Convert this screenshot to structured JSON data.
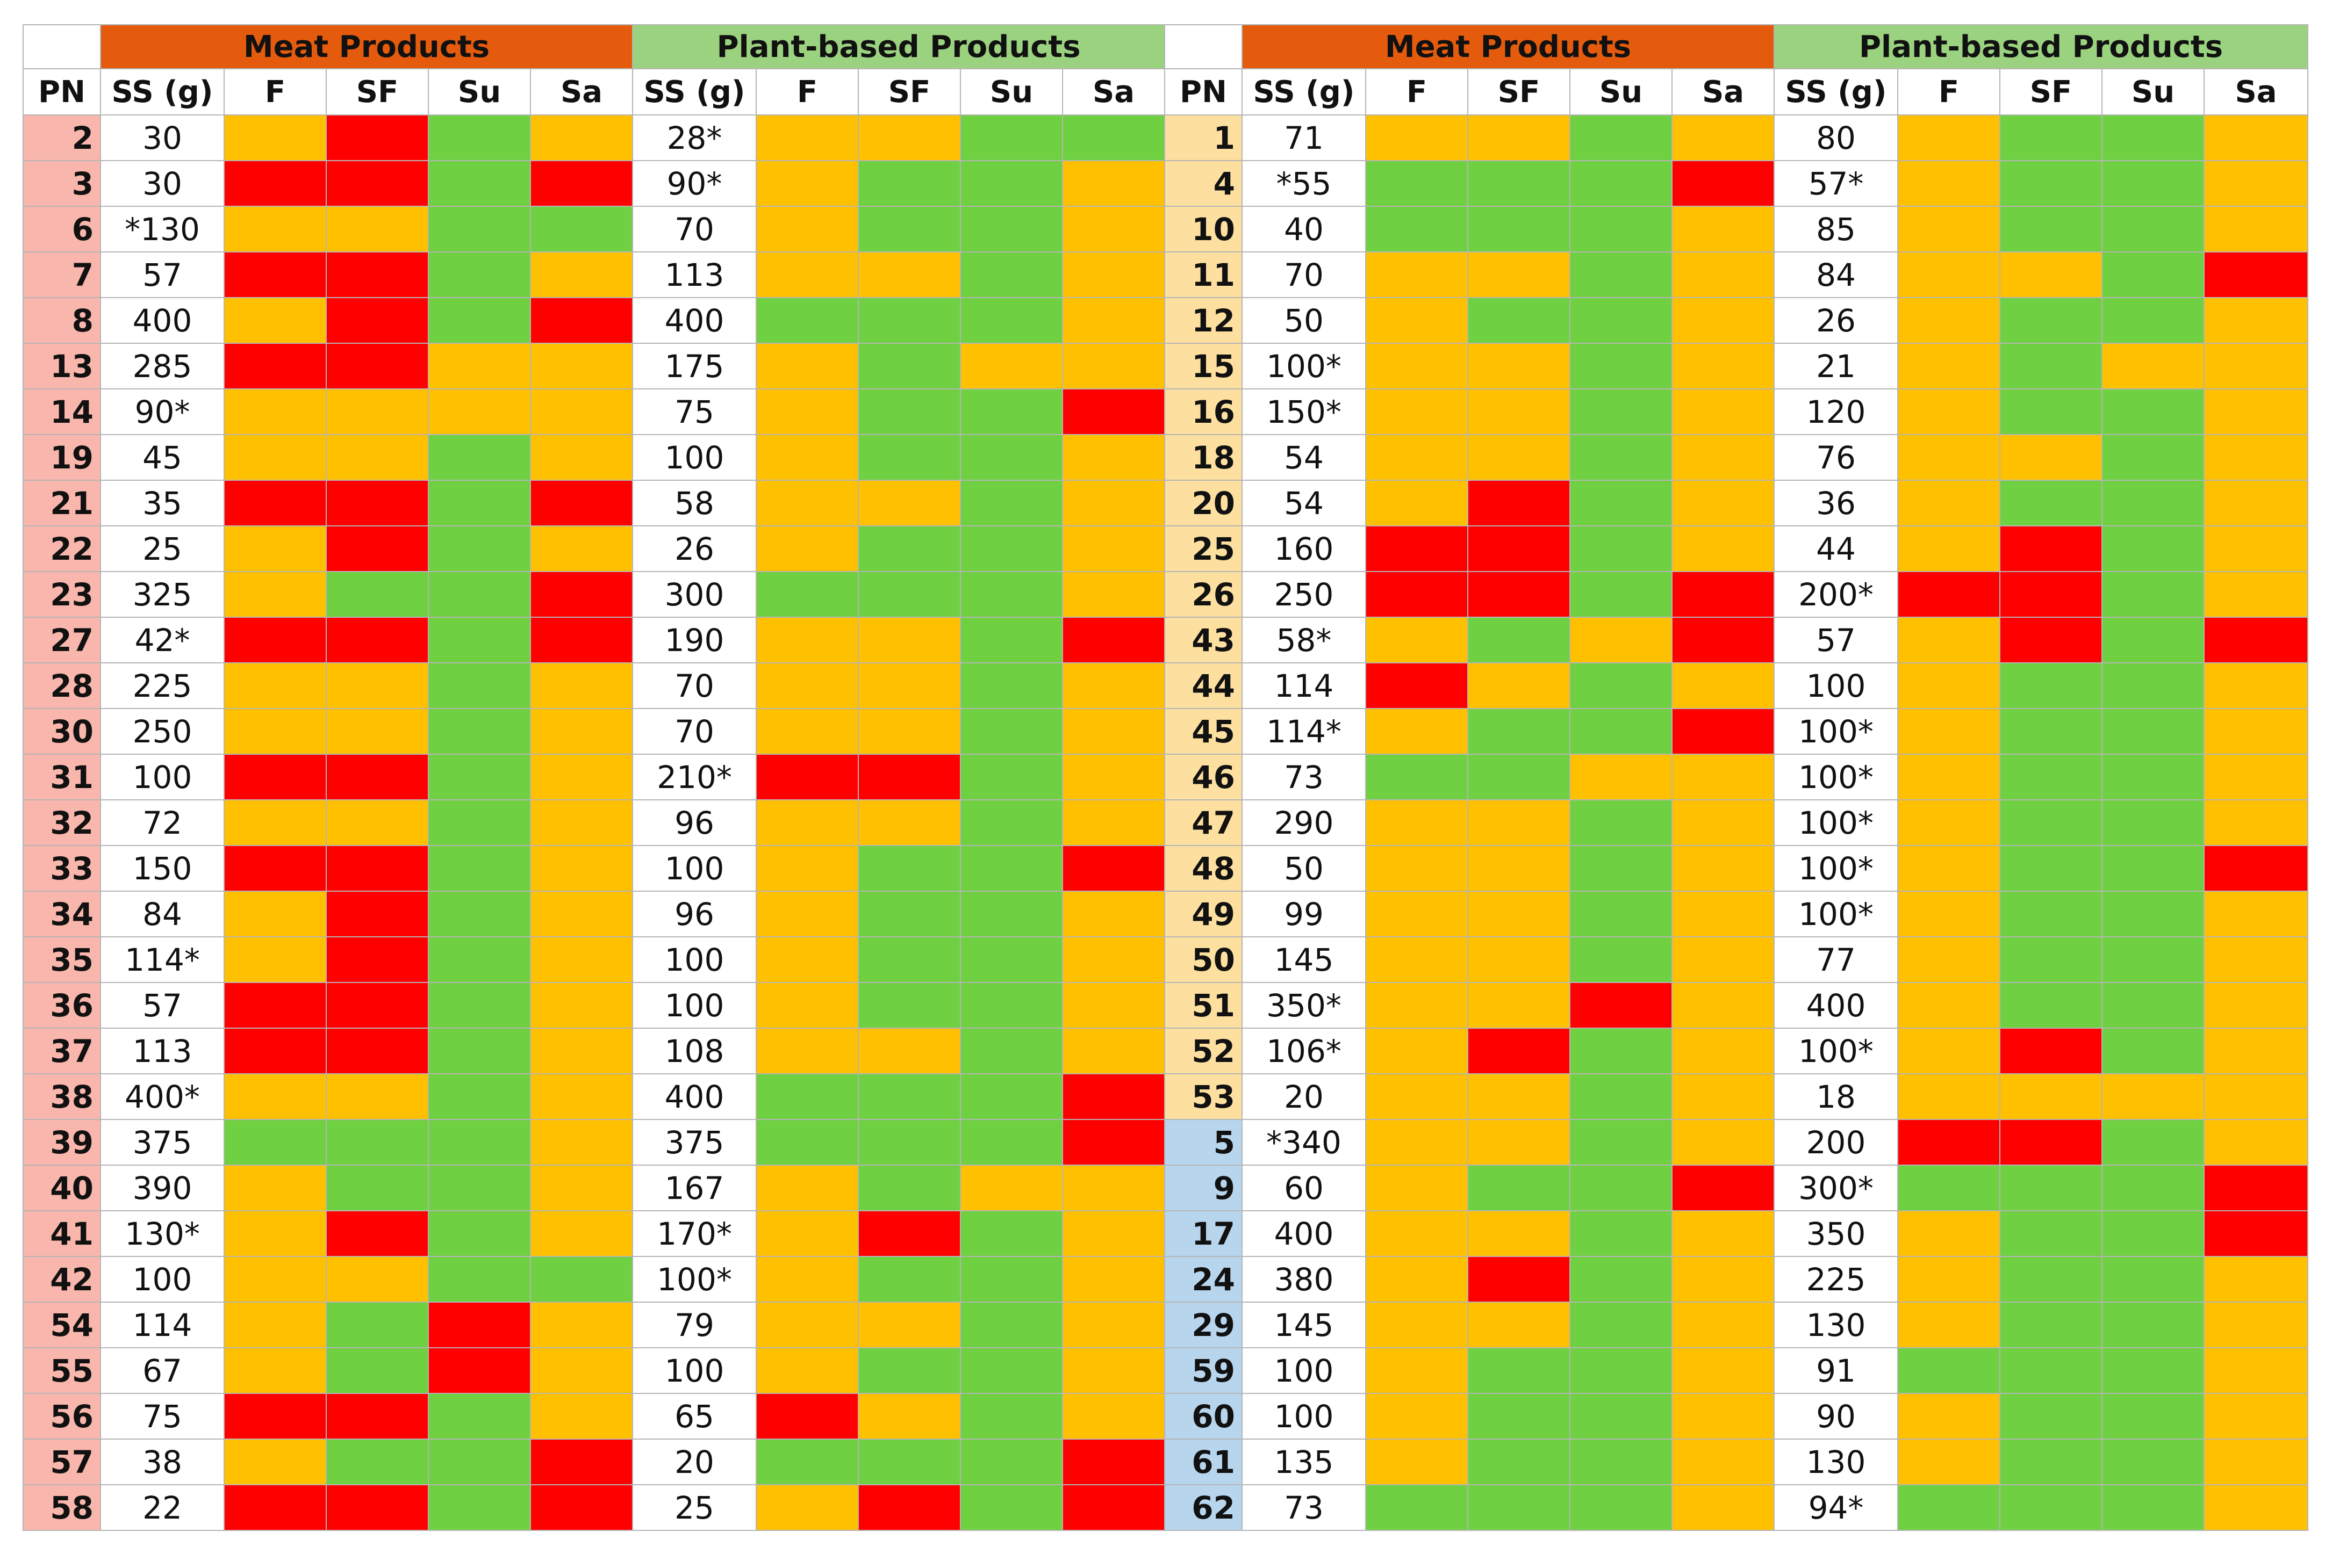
{
  "header": {
    "groups": [
      "Meat Products",
      "Plant-based Products",
      "Meat Products",
      "Plant-based Products"
    ],
    "columns": [
      "PN",
      "SS (g)",
      "F",
      "SF",
      "Su",
      "Sa",
      "SS (g)",
      "F",
      "SF",
      "Su",
      "Sa",
      "PN",
      "SS (g)",
      "F",
      "SF",
      "Su",
      "Sa",
      "SS (g)",
      "F",
      "SF",
      "Su",
      "Sa"
    ]
  },
  "colors": {
    "r": "#ff0000",
    "a": "#ffc000",
    "g": "#6fd041",
    "meat_header": "#e55b0d",
    "plant_header": "#9ad27f"
  },
  "rows": [
    {
      "left": {
        "pn": "2",
        "meat_ss": "30",
        "meat": [
          "a",
          "r",
          "g",
          "a"
        ],
        "plant_ss": "28*",
        "plant": [
          "a",
          "a",
          "g",
          "g"
        ]
      },
      "right": {
        "pn": "1",
        "pn_group": "yellow",
        "meat_ss": "71",
        "meat": [
          "a",
          "a",
          "g",
          "a"
        ],
        "plant_ss": "80",
        "plant": [
          "a",
          "g",
          "g",
          "a"
        ]
      }
    },
    {
      "left": {
        "pn": "3",
        "meat_ss": "30",
        "meat": [
          "r",
          "r",
          "g",
          "r"
        ],
        "plant_ss": "90*",
        "plant": [
          "a",
          "g",
          "g",
          "a"
        ]
      },
      "right": {
        "pn": "4",
        "pn_group": "yellow",
        "meat_ss": "*55",
        "meat": [
          "g",
          "g",
          "g",
          "r"
        ],
        "plant_ss": "57*",
        "plant": [
          "a",
          "g",
          "g",
          "a"
        ]
      }
    },
    {
      "left": {
        "pn": "6",
        "meat_ss": "*130",
        "meat": [
          "a",
          "a",
          "g",
          "g"
        ],
        "plant_ss": "70",
        "plant": [
          "a",
          "g",
          "g",
          "a"
        ]
      },
      "right": {
        "pn": "10",
        "pn_group": "yellow",
        "meat_ss": "40",
        "meat": [
          "g",
          "g",
          "g",
          "a"
        ],
        "plant_ss": "85",
        "plant": [
          "a",
          "g",
          "g",
          "a"
        ]
      }
    },
    {
      "left": {
        "pn": "7",
        "meat_ss": "57",
        "meat": [
          "r",
          "r",
          "g",
          "a"
        ],
        "plant_ss": "113",
        "plant": [
          "a",
          "a",
          "g",
          "a"
        ]
      },
      "right": {
        "pn": "11",
        "pn_group": "yellow",
        "meat_ss": "70",
        "meat": [
          "a",
          "a",
          "g",
          "a"
        ],
        "plant_ss": "84",
        "plant": [
          "a",
          "a",
          "g",
          "r"
        ]
      }
    },
    {
      "left": {
        "pn": "8",
        "meat_ss": "400",
        "meat": [
          "a",
          "r",
          "g",
          "r"
        ],
        "plant_ss": "400",
        "plant": [
          "g",
          "g",
          "g",
          "a"
        ]
      },
      "right": {
        "pn": "12",
        "pn_group": "yellow",
        "meat_ss": "50",
        "meat": [
          "a",
          "g",
          "g",
          "a"
        ],
        "plant_ss": "26",
        "plant": [
          "a",
          "g",
          "g",
          "a"
        ]
      }
    },
    {
      "left": {
        "pn": "13",
        "meat_ss": "285",
        "meat": [
          "r",
          "r",
          "a",
          "a"
        ],
        "plant_ss": "175",
        "plant": [
          "a",
          "g",
          "a",
          "a"
        ]
      },
      "right": {
        "pn": "15",
        "pn_group": "yellow",
        "meat_ss": "100*",
        "meat": [
          "a",
          "a",
          "g",
          "a"
        ],
        "plant_ss": "21",
        "plant": [
          "a",
          "g",
          "a",
          "a"
        ]
      }
    },
    {
      "left": {
        "pn": "14",
        "meat_ss": "90*",
        "meat": [
          "a",
          "a",
          "a",
          "a"
        ],
        "plant_ss": "75",
        "plant": [
          "a",
          "g",
          "g",
          "r"
        ]
      },
      "right": {
        "pn": "16",
        "pn_group": "yellow",
        "meat_ss": "150*",
        "meat": [
          "a",
          "a",
          "g",
          "a"
        ],
        "plant_ss": "120",
        "plant": [
          "a",
          "g",
          "g",
          "a"
        ]
      }
    },
    {
      "left": {
        "pn": "19",
        "meat_ss": "45",
        "meat": [
          "a",
          "a",
          "g",
          "a"
        ],
        "plant_ss": "100",
        "plant": [
          "a",
          "g",
          "g",
          "a"
        ]
      },
      "right": {
        "pn": "18",
        "pn_group": "yellow",
        "meat_ss": "54",
        "meat": [
          "a",
          "a",
          "g",
          "a"
        ],
        "plant_ss": "76",
        "plant": [
          "a",
          "a",
          "g",
          "a"
        ]
      }
    },
    {
      "left": {
        "pn": "21",
        "meat_ss": "35",
        "meat": [
          "r",
          "r",
          "g",
          "r"
        ],
        "plant_ss": "58",
        "plant": [
          "a",
          "a",
          "g",
          "a"
        ]
      },
      "right": {
        "pn": "20",
        "pn_group": "yellow",
        "meat_ss": "54",
        "meat": [
          "a",
          "r",
          "g",
          "a"
        ],
        "plant_ss": "36",
        "plant": [
          "a",
          "g",
          "g",
          "a"
        ]
      }
    },
    {
      "left": {
        "pn": "22",
        "meat_ss": "25",
        "meat": [
          "a",
          "r",
          "g",
          "a"
        ],
        "plant_ss": "26",
        "plant": [
          "a",
          "g",
          "g",
          "a"
        ]
      },
      "right": {
        "pn": "25",
        "pn_group": "yellow",
        "meat_ss": "160",
        "meat": [
          "r",
          "r",
          "g",
          "a"
        ],
        "plant_ss": "44",
        "plant": [
          "a",
          "r",
          "g",
          "a"
        ]
      }
    },
    {
      "left": {
        "pn": "23",
        "meat_ss": "325",
        "meat": [
          "a",
          "g",
          "g",
          "r"
        ],
        "plant_ss": "300",
        "plant": [
          "g",
          "g",
          "g",
          "a"
        ]
      },
      "right": {
        "pn": "26",
        "pn_group": "yellow",
        "meat_ss": "250",
        "meat": [
          "r",
          "r",
          "g",
          "r"
        ],
        "plant_ss": "200*",
        "plant": [
          "r",
          "r",
          "g",
          "a"
        ]
      }
    },
    {
      "left": {
        "pn": "27",
        "meat_ss": "42*",
        "meat": [
          "r",
          "r",
          "g",
          "r"
        ],
        "plant_ss": "190",
        "plant": [
          "a",
          "a",
          "g",
          "r"
        ]
      },
      "right": {
        "pn": "43",
        "pn_group": "yellow",
        "meat_ss": "58*",
        "meat": [
          "a",
          "g",
          "a",
          "r"
        ],
        "plant_ss": "57",
        "plant": [
          "a",
          "r",
          "g",
          "r"
        ]
      }
    },
    {
      "left": {
        "pn": "28",
        "meat_ss": "225",
        "meat": [
          "a",
          "a",
          "g",
          "a"
        ],
        "plant_ss": "70",
        "plant": [
          "a",
          "a",
          "g",
          "a"
        ]
      },
      "right": {
        "pn": "44",
        "pn_group": "yellow",
        "meat_ss": "114",
        "meat": [
          "r",
          "a",
          "g",
          "a"
        ],
        "plant_ss": "100",
        "plant": [
          "a",
          "g",
          "g",
          "a"
        ]
      }
    },
    {
      "left": {
        "pn": "30",
        "meat_ss": "250",
        "meat": [
          "a",
          "a",
          "g",
          "a"
        ],
        "plant_ss": "70",
        "plant": [
          "a",
          "a",
          "g",
          "a"
        ]
      },
      "right": {
        "pn": "45",
        "pn_group": "yellow",
        "meat_ss": "114*",
        "meat": [
          "a",
          "g",
          "g",
          "r"
        ],
        "plant_ss": "100*",
        "plant": [
          "a",
          "g",
          "g",
          "a"
        ]
      }
    },
    {
      "left": {
        "pn": "31",
        "meat_ss": "100",
        "meat": [
          "r",
          "r",
          "g",
          "a"
        ],
        "plant_ss": "210*",
        "plant": [
          "r",
          "r",
          "g",
          "a"
        ]
      },
      "right": {
        "pn": "46",
        "pn_group": "yellow",
        "meat_ss": "73",
        "meat": [
          "g",
          "g",
          "a",
          "a"
        ],
        "plant_ss": "100*",
        "plant": [
          "a",
          "g",
          "g",
          "a"
        ]
      }
    },
    {
      "left": {
        "pn": "32",
        "meat_ss": "72",
        "meat": [
          "a",
          "a",
          "g",
          "a"
        ],
        "plant_ss": "96",
        "plant": [
          "a",
          "a",
          "g",
          "a"
        ]
      },
      "right": {
        "pn": "47",
        "pn_group": "yellow",
        "meat_ss": "290",
        "meat": [
          "a",
          "a",
          "g",
          "a"
        ],
        "plant_ss": "100*",
        "plant": [
          "a",
          "g",
          "g",
          "a"
        ]
      }
    },
    {
      "left": {
        "pn": "33",
        "meat_ss": "150",
        "meat": [
          "r",
          "r",
          "g",
          "a"
        ],
        "plant_ss": "100",
        "plant": [
          "a",
          "g",
          "g",
          "r"
        ]
      },
      "right": {
        "pn": "48",
        "pn_group": "yellow",
        "meat_ss": "50",
        "meat": [
          "a",
          "a",
          "g",
          "a"
        ],
        "plant_ss": "100*",
        "plant": [
          "a",
          "g",
          "g",
          "r"
        ]
      }
    },
    {
      "left": {
        "pn": "34",
        "meat_ss": "84",
        "meat": [
          "a",
          "r",
          "g",
          "a"
        ],
        "plant_ss": "96",
        "plant": [
          "a",
          "g",
          "g",
          "a"
        ]
      },
      "right": {
        "pn": "49",
        "pn_group": "yellow",
        "meat_ss": "99",
        "meat": [
          "a",
          "a",
          "g",
          "a"
        ],
        "plant_ss": "100*",
        "plant": [
          "a",
          "g",
          "g",
          "a"
        ]
      }
    },
    {
      "left": {
        "pn": "35",
        "meat_ss": "114*",
        "meat": [
          "a",
          "r",
          "g",
          "a"
        ],
        "plant_ss": "100",
        "plant": [
          "a",
          "g",
          "g",
          "a"
        ]
      },
      "right": {
        "pn": "50",
        "pn_group": "yellow",
        "meat_ss": "145",
        "meat": [
          "a",
          "a",
          "g",
          "a"
        ],
        "plant_ss": "77",
        "plant": [
          "a",
          "g",
          "g",
          "a"
        ]
      }
    },
    {
      "left": {
        "pn": "36",
        "meat_ss": "57",
        "meat": [
          "r",
          "r",
          "g",
          "a"
        ],
        "plant_ss": "100",
        "plant": [
          "a",
          "g",
          "g",
          "a"
        ]
      },
      "right": {
        "pn": "51",
        "pn_group": "yellow",
        "meat_ss": "350*",
        "meat": [
          "a",
          "a",
          "r",
          "a"
        ],
        "plant_ss": "400",
        "plant": [
          "a",
          "g",
          "g",
          "a"
        ]
      }
    },
    {
      "left": {
        "pn": "37",
        "meat_ss": "113",
        "meat": [
          "r",
          "r",
          "g",
          "a"
        ],
        "plant_ss": "108",
        "plant": [
          "a",
          "a",
          "g",
          "a"
        ]
      },
      "right": {
        "pn": "52",
        "pn_group": "yellow",
        "meat_ss": "106*",
        "meat": [
          "a",
          "r",
          "g",
          "a"
        ],
        "plant_ss": "100*",
        "plant": [
          "a",
          "r",
          "g",
          "a"
        ]
      }
    },
    {
      "left": {
        "pn": "38",
        "meat_ss": "400*",
        "meat": [
          "a",
          "a",
          "g",
          "a"
        ],
        "plant_ss": "400",
        "plant": [
          "g",
          "g",
          "g",
          "r"
        ]
      },
      "right": {
        "pn": "53",
        "pn_group": "yellow",
        "meat_ss": "20",
        "meat": [
          "a",
          "a",
          "g",
          "a"
        ],
        "plant_ss": "18",
        "plant": [
          "a",
          "a",
          "a",
          "a"
        ]
      }
    },
    {
      "left": {
        "pn": "39",
        "meat_ss": "375",
        "meat": [
          "g",
          "g",
          "g",
          "a"
        ],
        "plant_ss": "375",
        "plant": [
          "g",
          "g",
          "g",
          "r"
        ]
      },
      "right": {
        "pn": "5",
        "pn_group": "blue",
        "meat_ss": "*340",
        "meat": [
          "a",
          "a",
          "g",
          "a"
        ],
        "plant_ss": "200",
        "plant": [
          "r",
          "r",
          "g",
          "a"
        ]
      }
    },
    {
      "left": {
        "pn": "40",
        "meat_ss": "390",
        "meat": [
          "a",
          "g",
          "g",
          "a"
        ],
        "plant_ss": "167",
        "plant": [
          "a",
          "g",
          "a",
          "a"
        ]
      },
      "right": {
        "pn": "9",
        "pn_group": "blue",
        "meat_ss": "60",
        "meat": [
          "a",
          "g",
          "g",
          "r"
        ],
        "plant_ss": "300*",
        "plant": [
          "g",
          "g",
          "g",
          "r"
        ]
      }
    },
    {
      "left": {
        "pn": "41",
        "meat_ss": "130*",
        "meat": [
          "a",
          "r",
          "g",
          "a"
        ],
        "plant_ss": "170*",
        "plant": [
          "a",
          "r",
          "g",
          "a"
        ]
      },
      "right": {
        "pn": "17",
        "pn_group": "blue",
        "meat_ss": "400",
        "meat": [
          "a",
          "a",
          "g",
          "a"
        ],
        "plant_ss": "350",
        "plant": [
          "a",
          "g",
          "g",
          "r"
        ]
      }
    },
    {
      "left": {
        "pn": "42",
        "meat_ss": "100",
        "meat": [
          "a",
          "a",
          "g",
          "g"
        ],
        "plant_ss": "100*",
        "plant": [
          "a",
          "g",
          "g",
          "a"
        ]
      },
      "right": {
        "pn": "24",
        "pn_group": "blue",
        "meat_ss": "380",
        "meat": [
          "a",
          "r",
          "g",
          "a"
        ],
        "plant_ss": "225",
        "plant": [
          "a",
          "g",
          "g",
          "a"
        ]
      }
    },
    {
      "left": {
        "pn": "54",
        "meat_ss": "114",
        "meat": [
          "a",
          "g",
          "r",
          "a"
        ],
        "plant_ss": "79",
        "plant": [
          "a",
          "a",
          "g",
          "a"
        ]
      },
      "right": {
        "pn": "29",
        "pn_group": "blue",
        "meat_ss": "145",
        "meat": [
          "a",
          "a",
          "g",
          "a"
        ],
        "plant_ss": "130",
        "plant": [
          "a",
          "g",
          "g",
          "a"
        ]
      }
    },
    {
      "left": {
        "pn": "55",
        "meat_ss": "67",
        "meat": [
          "a",
          "g",
          "r",
          "a"
        ],
        "plant_ss": "100",
        "plant": [
          "a",
          "g",
          "g",
          "a"
        ]
      },
      "right": {
        "pn": "59",
        "pn_group": "blue",
        "meat_ss": "100",
        "meat": [
          "a",
          "g",
          "g",
          "a"
        ],
        "plant_ss": "91",
        "plant": [
          "g",
          "g",
          "g",
          "a"
        ]
      }
    },
    {
      "left": {
        "pn": "56",
        "meat_ss": "75",
        "meat": [
          "r",
          "r",
          "g",
          "a"
        ],
        "plant_ss": "65",
        "plant": [
          "r",
          "a",
          "g",
          "a"
        ]
      },
      "right": {
        "pn": "60",
        "pn_group": "blue",
        "meat_ss": "100",
        "meat": [
          "a",
          "g",
          "g",
          "a"
        ],
        "plant_ss": "90",
        "plant": [
          "a",
          "g",
          "g",
          "a"
        ]
      }
    },
    {
      "left": {
        "pn": "57",
        "meat_ss": "38",
        "meat": [
          "a",
          "g",
          "g",
          "r"
        ],
        "plant_ss": "20",
        "plant": [
          "g",
          "g",
          "g",
          "r"
        ]
      },
      "right": {
        "pn": "61",
        "pn_group": "blue",
        "meat_ss": "135",
        "meat": [
          "a",
          "g",
          "g",
          "a"
        ],
        "plant_ss": "130",
        "plant": [
          "a",
          "g",
          "g",
          "a"
        ]
      }
    },
    {
      "left": {
        "pn": "58",
        "meat_ss": "22",
        "meat": [
          "r",
          "r",
          "g",
          "r"
        ],
        "plant_ss": "25",
        "plant": [
          "a",
          "r",
          "g",
          "r"
        ]
      },
      "right": {
        "pn": "62",
        "pn_group": "blue",
        "meat_ss": "73",
        "meat": [
          "g",
          "g",
          "g",
          "a"
        ],
        "plant_ss": "94*",
        "plant": [
          "g",
          "g",
          "g",
          "a"
        ]
      }
    }
  ]
}
